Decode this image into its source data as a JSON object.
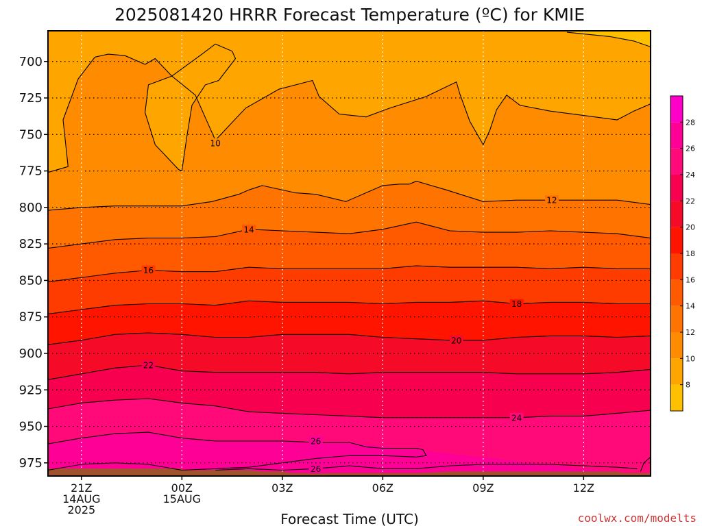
{
  "title": "2025081420 HRRR Forecast Temperature (ºC) for KMIE",
  "xlabel": "Forecast Time (UTC)",
  "credit": "coolwx.com/modelts",
  "colors": {
    "ground": "#a0522d",
    "credit": "#cc3333"
  },
  "chart_data": {
    "type": "contour",
    "x_unit": "hours from 20Z 14AUG2025",
    "x_range": [
      0,
      18
    ],
    "y_range_hPa": [
      679,
      984
    ],
    "x_ticks": [
      {
        "x": 1,
        "lines": [
          "21Z",
          "14AUG",
          "2025"
        ]
      },
      {
        "x": 4,
        "lines": [
          "00Z",
          "15AUG"
        ]
      },
      {
        "x": 7,
        "lines": [
          "03Z"
        ]
      },
      {
        "x": 10,
        "lines": [
          "06Z"
        ]
      },
      {
        "x": 13,
        "lines": [
          "09Z"
        ]
      },
      {
        "x": 16,
        "lines": [
          "12Z"
        ]
      }
    ],
    "y_ticks": [
      700,
      725,
      750,
      775,
      800,
      825,
      850,
      875,
      900,
      925,
      950,
      975
    ],
    "colorbar": {
      "min": 6,
      "max": 30,
      "ticks": [
        8,
        10,
        12,
        14,
        16,
        18,
        20,
        22,
        24,
        26,
        28
      ],
      "bands": [
        {
          "from": 6,
          "to": 8,
          "color": "#ffc000"
        },
        {
          "from": 8,
          "to": 10,
          "color": "#ffa500"
        },
        {
          "from": 10,
          "to": 12,
          "color": "#ff8c00"
        },
        {
          "from": 12,
          "to": 14,
          "color": "#ff7300"
        },
        {
          "from": 14,
          "to": 16,
          "color": "#ff5a00"
        },
        {
          "from": 16,
          "to": 18,
          "color": "#ff3c00"
        },
        {
          "from": 18,
          "to": 20,
          "color": "#ff1400"
        },
        {
          "from": 20,
          "to": 22,
          "color": "#f50a28"
        },
        {
          "from": 22,
          "to": 24,
          "color": "#f80050"
        },
        {
          "from": 24,
          "to": 26,
          "color": "#ff0a78"
        },
        {
          "from": 26,
          "to": 28,
          "color": "#ff0096"
        },
        {
          "from": 28,
          "to": 30,
          "color": "#ff00c8"
        }
      ]
    },
    "isotherms": [
      {
        "value": 10,
        "label": "10",
        "label_at": [
          5.0,
          756
        ],
        "points": [
          [
            2.9,
            702
          ],
          [
            3.2,
            698
          ],
          [
            3.7,
            710
          ],
          [
            4.4,
            723
          ],
          [
            5.0,
            754
          ],
          [
            5.9,
            732
          ],
          [
            6.9,
            719
          ],
          [
            7.9,
            713
          ],
          [
            8.1,
            724
          ],
          [
            8.7,
            736
          ],
          [
            9.5,
            738
          ],
          [
            10.2,
            732
          ],
          [
            11.3,
            724
          ],
          [
            12.2,
            714
          ],
          [
            12.3,
            722
          ],
          [
            12.6,
            741
          ],
          [
            13.0,
            757
          ],
          [
            13.2,
            747
          ],
          [
            13.4,
            733
          ],
          [
            13.7,
            723
          ],
          [
            14.1,
            730
          ],
          [
            15.0,
            734
          ],
          [
            16.0,
            737
          ],
          [
            17.0,
            740
          ],
          [
            17.5,
            734
          ],
          [
            18.0,
            729
          ]
        ]
      },
      {
        "value": 10,
        "label": "",
        "points": [
          [
            0,
            776
          ],
          [
            0.6,
            772
          ],
          [
            0.45,
            740
          ],
          [
            0.9,
            712
          ],
          [
            1.4,
            697
          ],
          [
            1.8,
            695
          ],
          [
            2.3,
            696
          ],
          [
            2.9,
            702
          ]
        ]
      },
      {
        "value": 10,
        "label": "",
        "points": [
          [
            3.7,
            710
          ],
          [
            3.0,
            716
          ],
          [
            2.9,
            735
          ],
          [
            3.2,
            757
          ],
          [
            3.9,
            774
          ],
          [
            4.0,
            775
          ],
          [
            4.15,
            751
          ],
          [
            4.3,
            730
          ],
          [
            4.7,
            716
          ],
          [
            5.1,
            713
          ],
          [
            5.6,
            698
          ],
          [
            5.5,
            693
          ],
          [
            5.0,
            688
          ],
          [
            4.6,
            695
          ],
          [
            3.7,
            710
          ]
        ]
      },
      {
        "value": 10,
        "label": "",
        "points": [
          [
            15.5,
            680
          ],
          [
            16.8,
            683
          ],
          [
            17.5,
            686
          ],
          [
            18.0,
            690
          ]
        ]
      },
      {
        "value": 12,
        "label": "12",
        "label_at": [
          15.05,
          795
        ],
        "points": [
          [
            0,
            802
          ],
          [
            1.0,
            800
          ],
          [
            2.0,
            799
          ],
          [
            3.0,
            799
          ],
          [
            4.0,
            799
          ],
          [
            4.9,
            796
          ],
          [
            5.7,
            791
          ],
          [
            6.0,
            788
          ],
          [
            6.4,
            785
          ],
          [
            7.4,
            790
          ],
          [
            8.0,
            791
          ],
          [
            8.9,
            796
          ],
          [
            10.0,
            785
          ],
          [
            10.5,
            784
          ],
          [
            10.8,
            784
          ],
          [
            11.0,
            782
          ],
          [
            11.9,
            788
          ],
          [
            13.0,
            796
          ],
          [
            14.0,
            795
          ],
          [
            15.0,
            795
          ],
          [
            16.0,
            795
          ],
          [
            17.0,
            795
          ],
          [
            18.0,
            798
          ]
        ]
      },
      {
        "value": 14,
        "label": "14",
        "label_at": [
          6.0,
          815
        ],
        "points": [
          [
            0,
            828
          ],
          [
            1.0,
            825
          ],
          [
            2.0,
            822
          ],
          [
            3.0,
            821
          ],
          [
            4.0,
            821
          ],
          [
            5.0,
            820
          ],
          [
            6.0,
            815
          ],
          [
            7.0,
            816
          ],
          [
            8.0,
            817
          ],
          [
            9.0,
            818
          ],
          [
            10.0,
            815
          ],
          [
            11.0,
            810
          ],
          [
            12.0,
            816
          ],
          [
            13.0,
            817
          ],
          [
            14.0,
            817
          ],
          [
            15.0,
            816
          ],
          [
            16.0,
            817
          ],
          [
            17.0,
            818
          ],
          [
            18.0,
            821
          ]
        ]
      },
      {
        "value": 16,
        "label": "16",
        "label_at": [
          3.0,
          843
        ],
        "points": [
          [
            0,
            851
          ],
          [
            1.0,
            848
          ],
          [
            2.0,
            845
          ],
          [
            3.0,
            843
          ],
          [
            4.0,
            844
          ],
          [
            5.0,
            844
          ],
          [
            6.0,
            841
          ],
          [
            7.0,
            842
          ],
          [
            8.0,
            842
          ],
          [
            9.0,
            842
          ],
          [
            10.0,
            842
          ],
          [
            11.0,
            840
          ],
          [
            12.0,
            841
          ],
          [
            13.0,
            841
          ],
          [
            14.0,
            841
          ],
          [
            15.0,
            842
          ],
          [
            16.0,
            841
          ],
          [
            17.0,
            842
          ],
          [
            18.0,
            842
          ]
        ]
      },
      {
        "value": 18,
        "label": "18",
        "label_at": [
          14.0,
          866
        ],
        "points": [
          [
            0,
            873
          ],
          [
            1.0,
            870
          ],
          [
            2.0,
            867
          ],
          [
            3.0,
            866
          ],
          [
            4.0,
            866
          ],
          [
            5.0,
            867
          ],
          [
            6.0,
            864
          ],
          [
            7.0,
            865
          ],
          [
            8.0,
            865
          ],
          [
            9.0,
            865
          ],
          [
            10.0,
            866
          ],
          [
            11.0,
            865
          ],
          [
            12.0,
            865
          ],
          [
            13.0,
            864
          ],
          [
            14.0,
            866
          ],
          [
            15.0,
            865
          ],
          [
            16.0,
            865
          ],
          [
            17.0,
            866
          ],
          [
            18.0,
            866
          ]
        ]
      },
      {
        "value": 20,
        "label": "20",
        "label_at": [
          12.2,
          891
        ],
        "points": [
          [
            0,
            894
          ],
          [
            1.0,
            891
          ],
          [
            2.0,
            887
          ],
          [
            3.0,
            886
          ],
          [
            4.0,
            887
          ],
          [
            5.0,
            889
          ],
          [
            6.0,
            889
          ],
          [
            7.0,
            887
          ],
          [
            8.0,
            887
          ],
          [
            9.0,
            887
          ],
          [
            10.0,
            889
          ],
          [
            11.0,
            890
          ],
          [
            12.0,
            891
          ],
          [
            13.0,
            891
          ],
          [
            14.0,
            889
          ],
          [
            15.0,
            888
          ],
          [
            16.0,
            888
          ],
          [
            17.0,
            889
          ],
          [
            18.0,
            888
          ]
        ]
      },
      {
        "value": 22,
        "label": "22",
        "label_at": [
          3.0,
          908
        ],
        "points": [
          [
            0,
            918
          ],
          [
            1.0,
            914
          ],
          [
            2.0,
            910
          ],
          [
            3.0,
            908
          ],
          [
            4.0,
            912
          ],
          [
            5.0,
            913
          ],
          [
            6.0,
            913
          ],
          [
            7.0,
            913
          ],
          [
            8.0,
            913
          ],
          [
            9.0,
            914
          ],
          [
            10.0,
            913
          ],
          [
            11.0,
            913
          ],
          [
            12.0,
            913
          ],
          [
            13.0,
            913
          ],
          [
            14.0,
            914
          ],
          [
            15.0,
            914
          ],
          [
            16.0,
            914
          ],
          [
            17.0,
            913
          ],
          [
            18.0,
            911
          ]
        ]
      },
      {
        "value": 24,
        "label": "24",
        "label_at": [
          14.0,
          944
        ],
        "points": [
          [
            0,
            938
          ],
          [
            1.0,
            934
          ],
          [
            2.0,
            932
          ],
          [
            3.0,
            931
          ],
          [
            4.0,
            934
          ],
          [
            5.0,
            936
          ],
          [
            6.0,
            940
          ],
          [
            7.0,
            941
          ],
          [
            8.0,
            942
          ],
          [
            9.0,
            943
          ],
          [
            10.0,
            944
          ],
          [
            11.0,
            944
          ],
          [
            12.0,
            944
          ],
          [
            13.0,
            944
          ],
          [
            14.0,
            944
          ],
          [
            15.0,
            943
          ],
          [
            16.0,
            943
          ],
          [
            17.0,
            941
          ],
          [
            18.0,
            939
          ]
        ]
      },
      {
        "value": 26,
        "label": "26",
        "label_at": [
          8.0,
          960
        ],
        "points": [
          [
            0,
            962
          ],
          [
            1.0,
            958
          ],
          [
            2.0,
            955
          ],
          [
            3.0,
            954
          ],
          [
            4.0,
            958
          ],
          [
            5.0,
            960
          ],
          [
            6.0,
            960
          ],
          [
            7.0,
            960
          ],
          [
            8.0,
            961
          ],
          [
            9.0,
            961
          ],
          [
            9.5,
            964
          ],
          [
            10.0,
            965
          ],
          [
            11.0,
            965
          ],
          [
            11.2,
            966
          ],
          [
            11.3,
            970
          ],
          [
            11.0,
            971
          ],
          [
            10.0,
            970
          ],
          [
            9.0,
            970
          ],
          [
            8.0,
            972
          ],
          [
            7.0,
            975
          ],
          [
            6.0,
            978
          ],
          [
            5.0,
            979
          ],
          [
            4.0,
            980
          ],
          [
            3.0,
            976
          ],
          [
            2.0,
            975
          ],
          [
            1.0,
            976
          ],
          [
            0,
            980
          ]
        ]
      },
      {
        "value": 26,
        "label": "26",
        "label_at": [
          8.0,
          979
        ],
        "points": [
          [
            5.0,
            980
          ],
          [
            6.0,
            979
          ],
          [
            7.0,
            980
          ],
          [
            8.0,
            979
          ],
          [
            9.0,
            977
          ],
          [
            10.0,
            979
          ],
          [
            11.0,
            979
          ],
          [
            12.0,
            977
          ],
          [
            13.0,
            976
          ],
          [
            14.0,
            976
          ],
          [
            15.0,
            976
          ],
          [
            16.0,
            977
          ],
          [
            17.0,
            978
          ],
          [
            17.6,
            979
          ]
        ]
      },
      {
        "value": 26,
        "label": "",
        "points": [
          [
            17.7,
            981
          ],
          [
            17.8,
            975
          ],
          [
            18.0,
            971
          ]
        ]
      }
    ],
    "ground_surface": [
      [
        0,
        979
      ],
      [
        4.0,
        979
      ],
      [
        4.0,
        980
      ],
      [
        5.0,
        980
      ],
      [
        6.0,
        980
      ],
      [
        6.4,
        981
      ],
      [
        7.0,
        981
      ],
      [
        7.3,
        982
      ],
      [
        8.0,
        982
      ],
      [
        9.0,
        982
      ],
      [
        10.0,
        982
      ],
      [
        11.0,
        982
      ],
      [
        12.0,
        981
      ],
      [
        13.0,
        981
      ],
      [
        14.0,
        981
      ],
      [
        15.0,
        981
      ],
      [
        16.0,
        981
      ],
      [
        17.0,
        981
      ],
      [
        17.2,
        982
      ],
      [
        18.0,
        982
      ]
    ]
  }
}
